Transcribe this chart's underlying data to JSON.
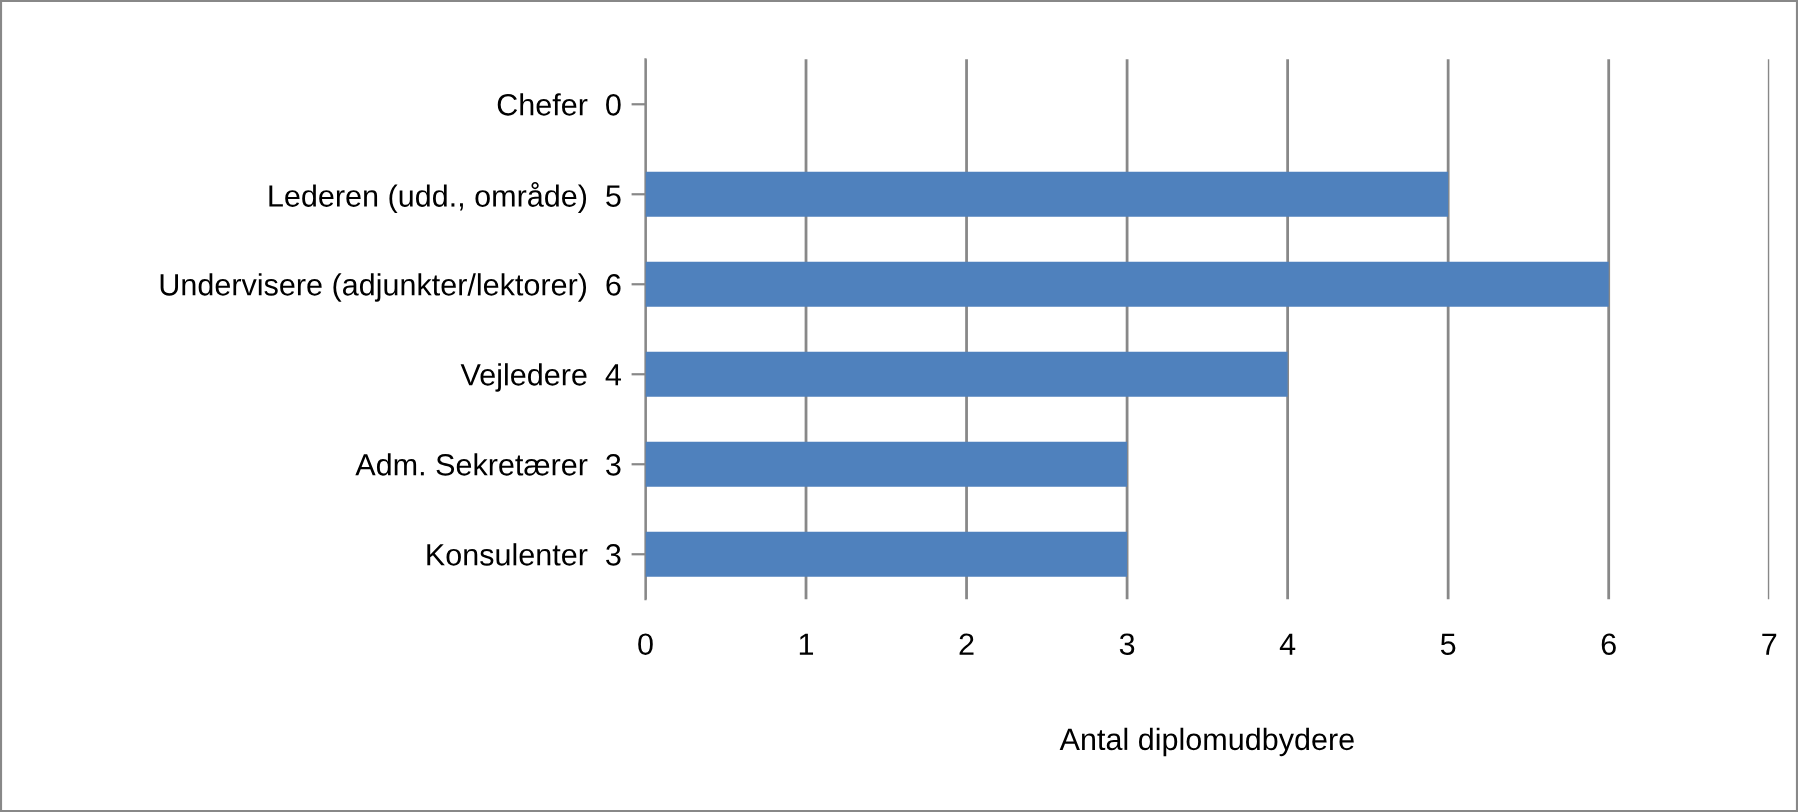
{
  "chart_data": {
    "type": "bar",
    "orientation": "horizontal",
    "xlabel": "Antal diplomudbydere",
    "categories": [
      "Chefer  0",
      "Lederen (udd., område)  5",
      "Undervisere (adjunkter/lektorer)  6",
      "Vejledere  4",
      "Adm. Sekretærer  3",
      "Konsulenter  3"
    ],
    "values": [
      0,
      5,
      6,
      4,
      3,
      3
    ],
    "color": "#4f81bd",
    "xlim": [
      0,
      7
    ],
    "xticks": [
      0,
      1,
      2,
      3,
      4,
      5,
      6,
      7
    ],
    "grid": "x"
  }
}
